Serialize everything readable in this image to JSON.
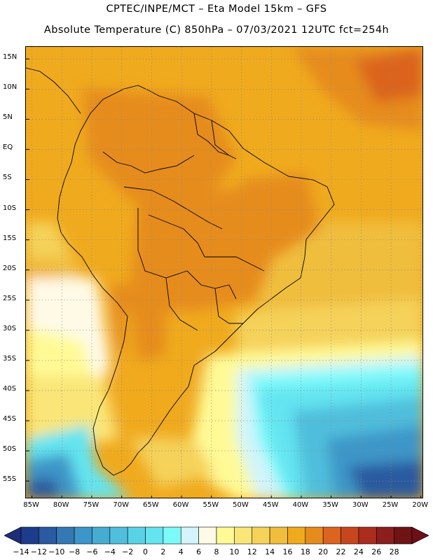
{
  "title_line1": "CPTEC/INPE/MCT –  Eta Model 15km – GFS",
  "title_line2": "Absolute Temperature (C) 850hPa – 07/03/2021 12UTC fct=254h",
  "map": {
    "variable": "Absolute Temperature",
    "units": "C",
    "level": "850hPa",
    "model": "Eta Model 15km",
    "boundary": "GFS",
    "lat_range": [
      -58,
      17
    ],
    "lon_range": [
      -86,
      -19.5
    ],
    "lat_labels": [
      {
        "value": 15,
        "label": "15N"
      },
      {
        "value": 10,
        "label": "10N"
      },
      {
        "value": 5,
        "label": "5N"
      },
      {
        "value": 0,
        "label": "EQ"
      },
      {
        "value": -5,
        "label": "5S"
      },
      {
        "value": -10,
        "label": "10S"
      },
      {
        "value": -15,
        "label": "15S"
      },
      {
        "value": -20,
        "label": "20S"
      },
      {
        "value": -25,
        "label": "25S"
      },
      {
        "value": -30,
        "label": "30S"
      },
      {
        "value": -35,
        "label": "35S"
      },
      {
        "value": -40,
        "label": "40S"
      },
      {
        "value": -45,
        "label": "45S"
      },
      {
        "value": -50,
        "label": "50S"
      },
      {
        "value": -55,
        "label": "55S"
      }
    ],
    "lon_labels": [
      {
        "value": -85,
        "label": "85W"
      },
      {
        "value": -80,
        "label": "80W"
      },
      {
        "value": -75,
        "label": "75W"
      },
      {
        "value": -70,
        "label": "70W"
      },
      {
        "value": -65,
        "label": "65W"
      },
      {
        "value": -60,
        "label": "60W"
      },
      {
        "value": -55,
        "label": "55W"
      },
      {
        "value": -50,
        "label": "50W"
      },
      {
        "value": -45,
        "label": "45W"
      },
      {
        "value": -40,
        "label": "40W"
      },
      {
        "value": -35,
        "label": "35W"
      },
      {
        "value": -30,
        "label": "30W"
      },
      {
        "value": -25,
        "label": "25W"
      },
      {
        "value": -20,
        "label": "20W"
      }
    ]
  },
  "colorbar": {
    "ticks": [
      "−14",
      "−12",
      "−10",
      "−8",
      "−6",
      "−4",
      "−2",
      "0",
      "2",
      "4",
      "6",
      "8",
      "10",
      "12",
      "14",
      "16",
      "18",
      "20",
      "22",
      "24",
      "26",
      "28"
    ],
    "colors": [
      "#1e3c8c",
      "#2a5aa0",
      "#3478b4",
      "#3c96c8",
      "#46acd2",
      "#50bedc",
      "#5ad2e6",
      "#64e4f0",
      "#7cfafa",
      "#d2f4fa",
      "#fffae6",
      "#fffa96",
      "#fae678",
      "#f5d25a",
      "#f0be3c",
      "#f0aa1e",
      "#e68c1e",
      "#dc641e",
      "#c8461e",
      "#aa2d1e",
      "#8c1e1e",
      "#6e1414"
    ],
    "under_color": "#1e2d78",
    "over_color": "#6e0f14"
  }
}
